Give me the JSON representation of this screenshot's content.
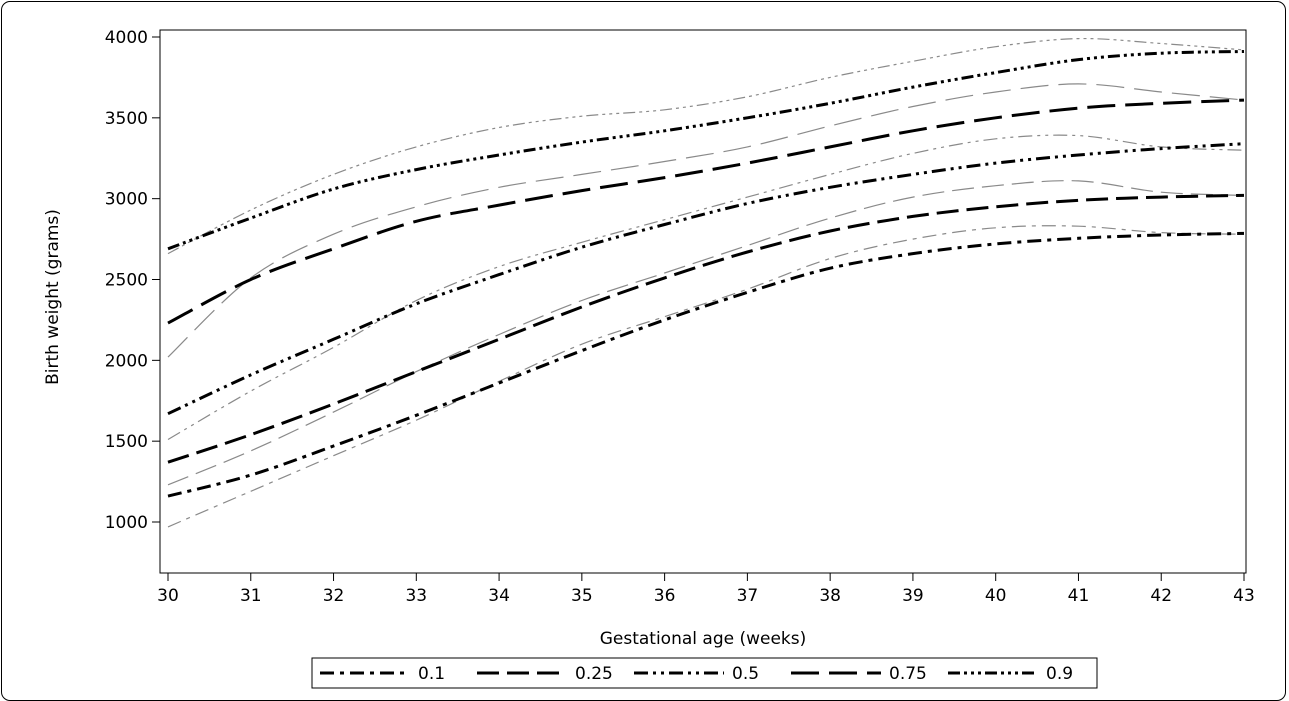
{
  "chart_data": {
    "type": "line",
    "xlabel": "Gestational age (weeks)",
    "ylabel": "Birth weight (grams)",
    "xlim": [
      30,
      43
    ],
    "ylim": [
      1000,
      4000
    ],
    "x_ticks": [
      30,
      31,
      32,
      33,
      34,
      35,
      36,
      37,
      38,
      39,
      40,
      41,
      42,
      43
    ],
    "y_ticks": [
      1000,
      1500,
      2000,
      2500,
      3000,
      3500,
      4000
    ],
    "x_tick_labels": [
      "30",
      "31",
      "32",
      "33",
      "34",
      "35",
      "36",
      "37",
      "38",
      "39",
      "40",
      "41",
      "42",
      "43"
    ],
    "y_tick_labels": [
      "1000",
      "1500",
      "2000",
      "2500",
      "3000",
      "3500",
      "4000"
    ],
    "grid": false,
    "legend_position": "bottom",
    "x": [
      30,
      31,
      32,
      33,
      34,
      35,
      36,
      37,
      38,
      39,
      40,
      41,
      42,
      43
    ],
    "series": [
      {
        "name": "0.1",
        "style": "fitted",
        "values": [
          1160,
          1290,
          1470,
          1660,
          1860,
          2060,
          2250,
          2420,
          2570,
          2660,
          2720,
          2755,
          2775,
          2785
        ],
        "observed": [
          970,
          1190,
          1410,
          1630,
          1870,
          2100,
          2270,
          2440,
          2630,
          2750,
          2820,
          2830,
          2790,
          2780
        ]
      },
      {
        "name": "0.25",
        "style": "fitted",
        "values": [
          1370,
          1540,
          1730,
          1930,
          2130,
          2330,
          2510,
          2670,
          2800,
          2890,
          2950,
          2990,
          3010,
          3020
        ],
        "observed": [
          1230,
          1440,
          1680,
          1930,
          2160,
          2370,
          2540,
          2710,
          2880,
          3010,
          3080,
          3110,
          3040,
          3020
        ]
      },
      {
        "name": "0.5",
        "style": "fitted",
        "values": [
          1670,
          1910,
          2130,
          2350,
          2530,
          2700,
          2840,
          2970,
          3070,
          3150,
          3220,
          3270,
          3310,
          3340
        ],
        "observed": [
          1510,
          1810,
          2080,
          2370,
          2580,
          2730,
          2870,
          3010,
          3150,
          3280,
          3370,
          3390,
          3320,
          3300
        ]
      },
      {
        "name": "0.75",
        "style": "fitted",
        "values": [
          2230,
          2500,
          2690,
          2860,
          2960,
          3050,
          3130,
          3220,
          3320,
          3420,
          3500,
          3560,
          3590,
          3610
        ],
        "observed": [
          2020,
          2510,
          2780,
          2950,
          3070,
          3150,
          3230,
          3320,
          3450,
          3570,
          3660,
          3710,
          3660,
          3610
        ]
      },
      {
        "name": "0.9",
        "style": "fitted",
        "values": [
          2690,
          2880,
          3060,
          3180,
          3270,
          3350,
          3420,
          3500,
          3590,
          3690,
          3780,
          3860,
          3900,
          3910
        ],
        "observed": [
          2660,
          2930,
          3150,
          3320,
          3440,
          3510,
          3550,
          3630,
          3750,
          3850,
          3940,
          3990,
          3960,
          3920
        ]
      }
    ]
  }
}
